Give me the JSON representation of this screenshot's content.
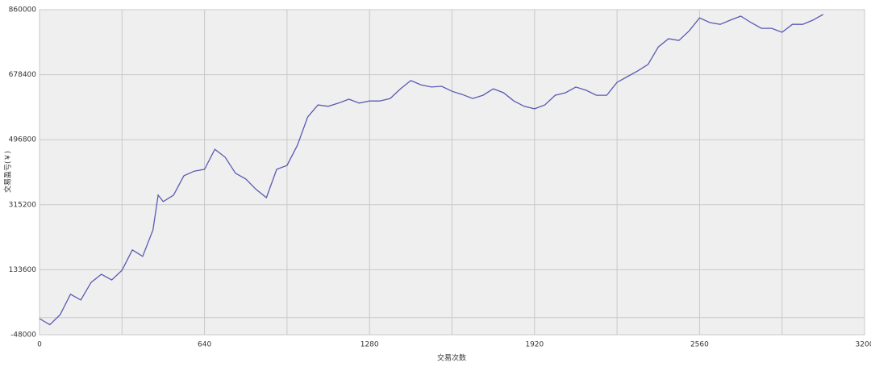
{
  "chart_data": {
    "type": "line",
    "x_label": "交易次数",
    "y_label": "交易盈亏(￥)",
    "x": [
      0,
      40,
      80,
      120,
      160,
      200,
      240,
      280,
      320,
      360,
      400,
      440,
      460,
      480,
      520,
      560,
      600,
      640,
      680,
      720,
      760,
      800,
      840,
      880,
      920,
      960,
      1000,
      1040,
      1080,
      1120,
      1160,
      1200,
      1240,
      1280,
      1320,
      1360,
      1400,
      1440,
      1480,
      1520,
      1560,
      1600,
      1640,
      1680,
      1720,
      1760,
      1800,
      1840,
      1880,
      1920,
      1960,
      2000,
      2040,
      2080,
      2120,
      2160,
      2200,
      2240,
      2280,
      2320,
      2360,
      2400,
      2440,
      2480,
      2520,
      2560,
      2600,
      2640,
      2680,
      2720,
      2760,
      2800,
      2840,
      2880,
      2920,
      2960,
      3000,
      3040
    ],
    "series": [
      {
        "color": "#5a5ab4",
        "values": [
          -3000,
          -20000,
          8000,
          65000,
          49000,
          98000,
          121000,
          105000,
          132000,
          189000,
          171000,
          245000,
          342000,
          324000,
          342000,
          396000,
          409000,
          414000,
          470000,
          448000,
          403000,
          387000,
          358000,
          335000,
          414000,
          425000,
          481000,
          560000,
          594000,
          590000,
          599000,
          610000,
          599000,
          605000,
          605000,
          612000,
          639000,
          662000,
          650000,
          644000,
          646000,
          632000,
          623000,
          612000,
          621000,
          639000,
          628000,
          605000,
          590000,
          583000,
          594000,
          621000,
          628000,
          644000,
          635000,
          621000,
          621000,
          657000,
          673000,
          689000,
          707000,
          756000,
          779000,
          774000,
          801000,
          837000,
          824000,
          819000,
          831000,
          842000,
          824000,
          808000,
          808000,
          797000,
          819000,
          819000,
          831000,
          847000
        ]
      }
    ],
    "xlim": [
      0,
      3200
    ],
    "xticks": [
      0,
      640,
      1280,
      1920,
      2560,
      3200
    ],
    "ylim": [
      -48000,
      860000
    ],
    "yticks": [
      -48000,
      133600,
      315200,
      496800,
      678400,
      860000
    ],
    "grid": true
  }
}
